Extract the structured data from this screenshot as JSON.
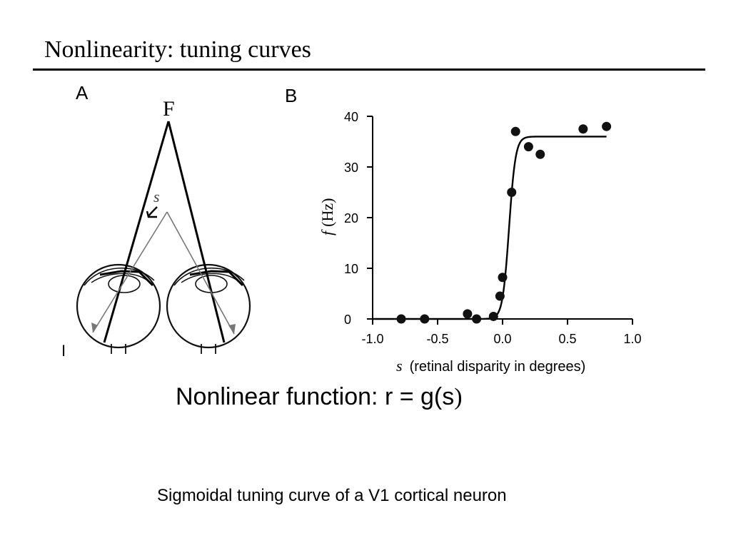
{
  "slide": {
    "title": "Nonlinearity: tuning curves",
    "caption_main": "Nonlinear function:  r = g(s",
    "caption_paren": ")",
    "caption_sub": "Sigmoidal tuning curve of a V1 cortical neuron"
  },
  "panel_a": {
    "label": "A",
    "fixation_label": "F",
    "disparity_label": "s",
    "stray_mark": "I"
  },
  "panel_b": {
    "label": "B",
    "ylabel_symbol": "f",
    "ylabel_unit": "(Hz)",
    "xlabel_symbol": "s",
    "xlabel_text": "(retinal disparity in degrees)"
  },
  "chart_data": {
    "type": "scatter",
    "xlim": [
      -1.0,
      1.0
    ],
    "ylim": [
      0,
      40
    ],
    "xticks": [
      -1.0,
      -0.5,
      0.0,
      0.5,
      1.0
    ],
    "xtick_labels": [
      "-1.0",
      "-0.5",
      "0.0",
      "0.5",
      "1.0"
    ],
    "yticks": [
      0,
      10,
      20,
      30,
      40
    ],
    "ytick_labels": [
      "0",
      "10",
      "20",
      "30",
      "40"
    ],
    "grid": false,
    "points": [
      {
        "x": -0.78,
        "y": 0
      },
      {
        "x": -0.6,
        "y": 0
      },
      {
        "x": -0.27,
        "y": 1
      },
      {
        "x": -0.2,
        "y": 0
      },
      {
        "x": -0.07,
        "y": 0.5
      },
      {
        "x": -0.02,
        "y": 4.5
      },
      {
        "x": 0.0,
        "y": 8.2
      },
      {
        "x": 0.07,
        "y": 25
      },
      {
        "x": 0.1,
        "y": 37
      },
      {
        "x": 0.2,
        "y": 34
      },
      {
        "x": 0.29,
        "y": 32.5
      },
      {
        "x": 0.62,
        "y": 37.5
      },
      {
        "x": 0.8,
        "y": 38
      }
    ],
    "fit_curve": {
      "type": "sigmoid",
      "x": [
        -1.0,
        1.0
      ],
      "baseline": 0,
      "max": 36,
      "midpoint": 0.05,
      "slope": 0.025,
      "x_end": 0.8
    }
  }
}
